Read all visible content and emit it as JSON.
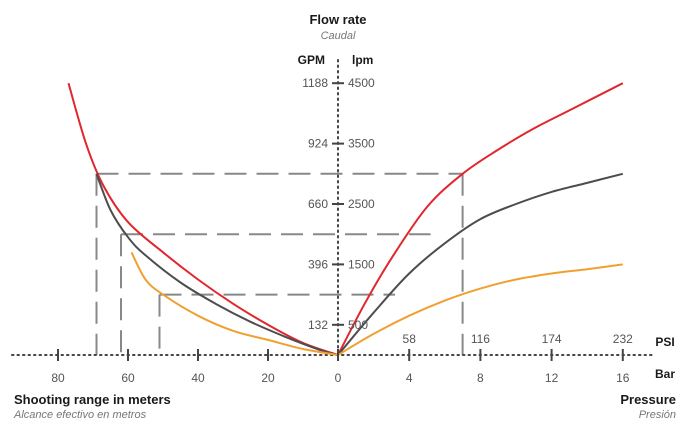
{
  "chart_data": {
    "type": "line",
    "center_title": "Flow rate",
    "center_subtitle": "Caudal",
    "left_axis_unit": "GPM",
    "right_axis_unit": "lpm",
    "flow_ticks": [
      {
        "gpm": "132",
        "lpm": "500"
      },
      {
        "gpm": "396",
        "lpm": "1500"
      },
      {
        "gpm": "660",
        "lpm": "2500"
      },
      {
        "gpm": "924",
        "lpm": "3500"
      },
      {
        "gpm": "1188",
        "lpm": "4500"
      }
    ],
    "range_axis": {
      "title": "Shooting range in meters",
      "subtitle": "Alcance efectivo en metros",
      "ticks": [
        "80",
        "60",
        "40",
        "20",
        "0"
      ],
      "range": [
        80,
        0
      ]
    },
    "pressure_axis": {
      "title": "Pressure",
      "subtitle": "Presión",
      "psi_label": "PSI",
      "bar_label": "Bar",
      "psi_ticks": [
        "58",
        "116",
        "174",
        "232"
      ],
      "bar_ticks": [
        "4",
        "8",
        "12",
        "16"
      ],
      "range_bar": [
        0,
        16
      ]
    },
    "flow_range_lpm": [
      0,
      4500
    ],
    "series": [
      {
        "color": "#e2262e",
        "range_curve": [
          [
            77,
            4500
          ],
          [
            72,
            3500
          ],
          [
            67,
            2800
          ],
          [
            60,
            2200
          ],
          [
            50,
            1700
          ],
          [
            40,
            1250
          ],
          [
            30,
            850
          ],
          [
            20,
            500
          ],
          [
            10,
            200
          ],
          [
            0,
            0
          ]
        ],
        "pressure_curve": [
          [
            0,
            0
          ],
          [
            1.5,
            850
          ],
          [
            3,
            1600
          ],
          [
            5,
            2450
          ],
          [
            7,
            3000
          ],
          [
            9,
            3400
          ],
          [
            11,
            3750
          ],
          [
            13,
            4050
          ],
          [
            16,
            4500
          ]
        ]
      },
      {
        "color": "#4d4d4f",
        "range_curve": [
          [
            69,
            3000
          ],
          [
            65,
            2400
          ],
          [
            60,
            1950
          ],
          [
            55,
            1650
          ],
          [
            45,
            1200
          ],
          [
            35,
            850
          ],
          [
            25,
            550
          ],
          [
            15,
            300
          ],
          [
            5,
            80
          ],
          [
            0,
            0
          ]
        ],
        "pressure_curve": [
          [
            0,
            0
          ],
          [
            2,
            700
          ],
          [
            4,
            1350
          ],
          [
            6,
            1850
          ],
          [
            8,
            2250
          ],
          [
            10,
            2500
          ],
          [
            12,
            2700
          ],
          [
            14,
            2850
          ],
          [
            16,
            3000
          ]
        ]
      },
      {
        "color": "#f0a030",
        "range_curve": [
          [
            59,
            1700
          ],
          [
            55,
            1250
          ],
          [
            50,
            1000
          ],
          [
            40,
            650
          ],
          [
            30,
            400
          ],
          [
            20,
            250
          ],
          [
            10,
            100
          ],
          [
            0,
            0
          ]
        ],
        "pressure_curve": [
          [
            0,
            0
          ],
          [
            2,
            350
          ],
          [
            4,
            650
          ],
          [
            6,
            900
          ],
          [
            8,
            1100
          ],
          [
            10,
            1250
          ],
          [
            12,
            1350
          ],
          [
            14,
            1420
          ],
          [
            16,
            1500
          ]
        ]
      }
    ],
    "guides": [
      {
        "range_m": 69,
        "pressure_bar": 7,
        "flow_lpm": 3000
      },
      {
        "range_m": 62,
        "pressure_bar": 5.2,
        "flow_lpm": 2000
      },
      {
        "range_m": 51,
        "pressure_bar": 3.2,
        "flow_lpm": 1000
      }
    ],
    "grid": false,
    "legend": "none"
  }
}
